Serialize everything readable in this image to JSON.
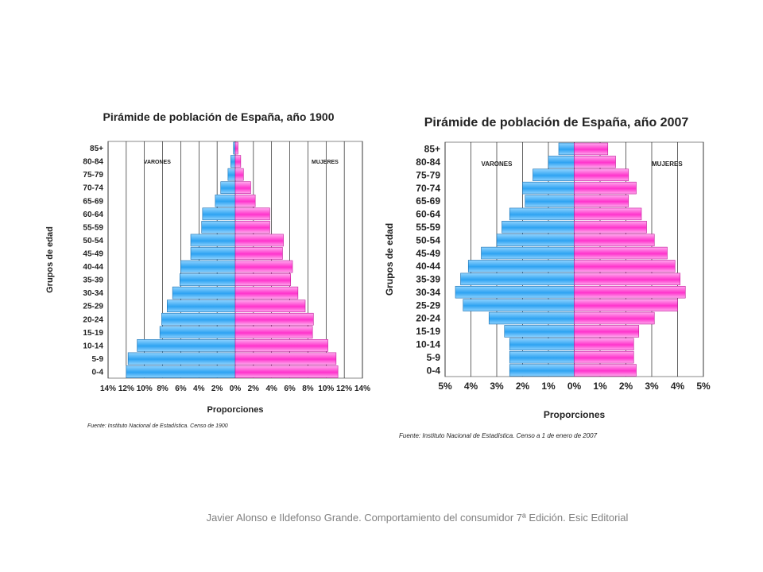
{
  "colors": {
    "male": "#2ea3f2",
    "male_light": "#8fd3ff",
    "female": "#ff33cc",
    "female_light": "#ffaaee",
    "grid": "#000000",
    "plot_bg": "#ffffff"
  },
  "caption": "Javier Alonso e Ildefonso Grande. Comportamiento del consumidor 7ª Edición. Esic Editorial",
  "chart_data": [
    {
      "type": "bar",
      "title": "Pirámide de población de España, año 1900",
      "xlabel": "Proporciones",
      "ylabel": "Grupos de edad",
      "source": "Fuente: Instituto Nacional de Estadística. Censo de 1900",
      "categories": [
        "85+",
        "80-84",
        "75-79",
        "70-74",
        "65-69",
        "60-64",
        "55-59",
        "50-54",
        "45-49",
        "40-44",
        "35-39",
        "30-34",
        "25-29",
        "20-24",
        "15-19",
        "10-14",
        "5-9",
        "0-4"
      ],
      "xticks": [
        "14%",
        "12%",
        "10%",
        "8%",
        "6%",
        "4%",
        "2%",
        "0%",
        "2%",
        "4%",
        "6%",
        "8%",
        "10%",
        "12%",
        "14%"
      ],
      "xlim": [
        -14,
        14
      ],
      "grid": true,
      "series": [
        {
          "name": "VARONES",
          "values": [
            0.2,
            0.5,
            0.8,
            1.6,
            2.2,
            3.6,
            3.7,
            4.9,
            4.9,
            6.0,
            6.1,
            6.9,
            7.5,
            8.1,
            8.3,
            10.8,
            11.8,
            12.0
          ]
        },
        {
          "name": "MUJERES",
          "values": [
            0.3,
            0.6,
            0.9,
            1.7,
            2.2,
            3.8,
            3.8,
            5.3,
            5.2,
            6.3,
            6.1,
            6.9,
            7.7,
            8.6,
            8.5,
            10.2,
            11.1,
            11.3
          ]
        }
      ]
    },
    {
      "type": "bar",
      "title": "Pirámide de población de España, año 2007",
      "xlabel": "Proporciones",
      "ylabel": "Grupos de edad",
      "source": "Fuente: Instituto Nacional de Estadística. Censo a 1 de enero de 2007",
      "categories": [
        "85+",
        "80-84",
        "75-79",
        "70-74",
        "65-69",
        "60-64",
        "55-59",
        "50-54",
        "45-49",
        "40-44",
        "35-39",
        "30-34",
        "25-29",
        "20-24",
        "15-19",
        "10-14",
        "5-9",
        "0-4"
      ],
      "xticks": [
        "5%",
        "4%",
        "3%",
        "2%",
        "1%",
        "0%",
        "1%",
        "2%",
        "3%",
        "4%",
        "5%"
      ],
      "xlim": [
        -5,
        5
      ],
      "grid": true,
      "series": [
        {
          "name": "VARONES",
          "values": [
            0.6,
            1.0,
            1.6,
            2.0,
            1.9,
            2.5,
            2.8,
            3.0,
            3.6,
            4.1,
            4.4,
            4.6,
            4.3,
            3.3,
            2.7,
            2.5,
            2.5,
            2.5
          ]
        },
        {
          "name": "MUJERES",
          "values": [
            1.3,
            1.6,
            2.1,
            2.4,
            2.1,
            2.6,
            2.8,
            3.1,
            3.6,
            3.9,
            4.1,
            4.3,
            4.0,
            3.1,
            2.5,
            2.3,
            2.3,
            2.4
          ]
        }
      ]
    }
  ]
}
